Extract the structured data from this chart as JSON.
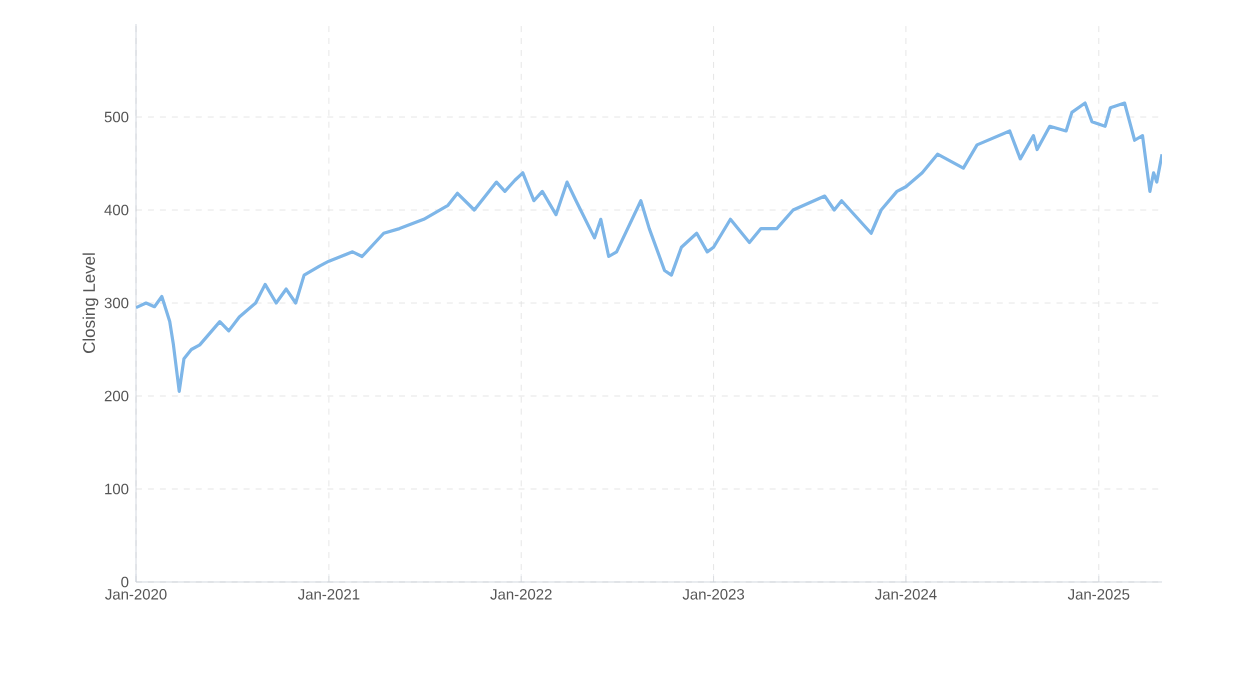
{
  "chart_data": {
    "type": "line",
    "ylabel": "Closing Level",
    "color": "#7eb6e8",
    "grid": true,
    "marker": "none",
    "line_style": "solid",
    "xlim": [
      "2020-01-01",
      "2025-05-01"
    ],
    "ylim": [
      0,
      600
    ],
    "xticks": [
      {
        "value": "2020-01-01",
        "label": "Jan-2020"
      },
      {
        "value": "2021-01-01",
        "label": "Jan-2021"
      },
      {
        "value": "2022-01-01",
        "label": "Jan-2022"
      },
      {
        "value": "2023-01-01",
        "label": "Jan-2023"
      },
      {
        "value": "2024-01-01",
        "label": "Jan-2024"
      },
      {
        "value": "2025-01-01",
        "label": "Jan-2025"
      }
    ],
    "yticks": [
      0,
      100,
      200,
      300,
      400,
      500
    ],
    "x": [
      "2020-01-01",
      "2020-01-20",
      "2020-02-05",
      "2020-02-19",
      "2020-03-05",
      "2020-03-12",
      "2020-03-23",
      "2020-04-01",
      "2020-04-15",
      "2020-05-01",
      "2020-06-08",
      "2020-06-25",
      "2020-07-15",
      "2020-08-15",
      "2020-09-02",
      "2020-09-23",
      "2020-10-12",
      "2020-10-30",
      "2020-11-15",
      "2020-12-15",
      "2021-01-01",
      "2021-02-15",
      "2021-03-05",
      "2021-04-15",
      "2021-05-15",
      "2021-06-30",
      "2021-08-15",
      "2021-09-02",
      "2021-10-04",
      "2021-11-15",
      "2021-12-01",
      "2021-12-20",
      "2022-01-04",
      "2022-01-25",
      "2022-02-10",
      "2022-03-08",
      "2022-03-29",
      "2022-04-15",
      "2022-05-20",
      "2022-06-01",
      "2022-06-16",
      "2022-07-01",
      "2022-08-16",
      "2022-09-01",
      "2022-09-30",
      "2022-10-13",
      "2022-11-01",
      "2022-11-30",
      "2022-12-20",
      "2023-01-01",
      "2023-02-02",
      "2023-03-10",
      "2023-04-01",
      "2023-05-01",
      "2023-06-01",
      "2023-07-31",
      "2023-08-18",
      "2023-09-01",
      "2023-10-27",
      "2023-11-15",
      "2023-12-15",
      "2024-01-01",
      "2024-02-01",
      "2024-03-01",
      "2024-04-19",
      "2024-05-15",
      "2024-07-16",
      "2024-08-05",
      "2024-08-30",
      "2024-09-06",
      "2024-09-30",
      "2024-10-31",
      "2024-11-11",
      "2024-12-06",
      "2024-12-19",
      "2025-01-13",
      "2025-01-23",
      "2025-02-19",
      "2025-03-10",
      "2025-03-25",
      "2025-04-08",
      "2025-04-15",
      "2025-04-21",
      "2025-05-01"
    ],
    "values": [
      295,
      300,
      296,
      307,
      280,
      255,
      205,
      240,
      250,
      255,
      280,
      270,
      285,
      300,
      320,
      300,
      315,
      300,
      330,
      340,
      345,
      355,
      350,
      375,
      380,
      390,
      405,
      418,
      400,
      430,
      420,
      432,
      440,
      410,
      420,
      395,
      430,
      410,
      370,
      390,
      350,
      355,
      410,
      380,
      335,
      330,
      360,
      375,
      355,
      360,
      390,
      365,
      380,
      380,
      400,
      415,
      400,
      410,
      375,
      400,
      420,
      425,
      440,
      460,
      445,
      470,
      485,
      455,
      480,
      465,
      490,
      485,
      505,
      515,
      495,
      490,
      510,
      515,
      475,
      480,
      420,
      440,
      430,
      460
    ]
  }
}
